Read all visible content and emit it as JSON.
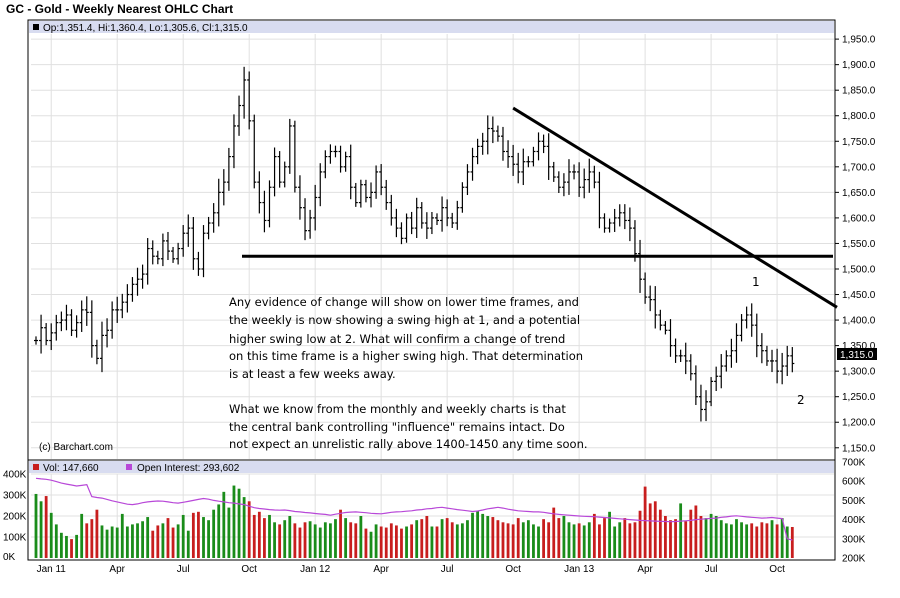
{
  "header": {
    "title": "GC - Gold - Weekly Nearest OHLC Chart",
    "ohlc_readout": "Op:1,351.4, Hi:1,360.4, Lo:1,305.6, Cl:1,315.0",
    "last_price_tag": "1,315.0"
  },
  "volume_legend": {
    "vol_label": "Vol: 147,660",
    "oi_label": "Open Interest: 293,602"
  },
  "copyright": "(c) Barchart.com",
  "annotation": {
    "lines": [
      "Any evidence of change will show on lower time frames, and",
      "the weekly is now showing a swing high at 1, and a potential",
      "higher swing low at 2.  What will confirm a change of trend",
      "on this time frame is a higher swing high.  That determination",
      "is at least a few weeks away.",
      "",
      "What we know from the monthly and weekly charts is that",
      "the central bank controlling \"influence\" remains intact.  Do",
      "not expect an unrelistic rally above 1400-1450 any time soon."
    ],
    "marker_1": "1",
    "marker_2": "2"
  },
  "colors": {
    "ohlc_bar": "#000000",
    "vol_up": "#1a8c1a",
    "vol_down": "#c81e1e",
    "open_interest": "#b848d8",
    "header_band": "#d8dcf0",
    "grid": "#e0e0e0"
  },
  "chart_data": {
    "type": "ohlc",
    "ylim": [
      1130,
      1960
    ],
    "y_ticks": [
      "1,150.0",
      "1,200.0",
      "1,250.0",
      "1,300.0",
      "1,350.0",
      "1,400.0",
      "1,450.0",
      "1,500.0",
      "1,550.0",
      "1,600.0",
      "1,650.0",
      "1,700.0",
      "1,750.0",
      "1,800.0",
      "1,850.0",
      "1,900.0",
      "1,950.0"
    ],
    "y_tick_values": [
      1150,
      1200,
      1250,
      1300,
      1350,
      1400,
      1450,
      1500,
      1550,
      1600,
      1650,
      1700,
      1750,
      1800,
      1850,
      1900,
      1950
    ],
    "x_ticks": [
      "Jan 11",
      "Apr",
      "Jul",
      "Oct",
      "Jan 12",
      "Apr",
      "Jul",
      "Oct",
      "Jan 13",
      "Apr",
      "Jul",
      "Oct"
    ],
    "x_tick_week_index": [
      3,
      16,
      29,
      42,
      55,
      68,
      81,
      94,
      107,
      120,
      133,
      146
    ],
    "closes": [
      1360,
      1385,
      1360,
      1375,
      1395,
      1400,
      1410,
      1380,
      1395,
      1420,
      1415,
      1350,
      1325,
      1370,
      1380,
      1420,
      1420,
      1435,
      1450,
      1470,
      1480,
      1490,
      1540,
      1525,
      1520,
      1555,
      1535,
      1520,
      1540,
      1570,
      1580,
      1520,
      1500,
      1570,
      1590,
      1610,
      1650,
      1670,
      1720,
      1780,
      1820,
      1870,
      1790,
      1670,
      1630,
      1595,
      1660,
      1720,
      1670,
      1700,
      1780,
      1660,
      1620,
      1575,
      1600,
      1640,
      1690,
      1720,
      1730,
      1730,
      1700,
      1720,
      1660,
      1630,
      1665,
      1640,
      1650,
      1690,
      1660,
      1630,
      1600,
      1580,
      1560,
      1600,
      1580,
      1620,
      1590,
      1580,
      1600,
      1595,
      1620,
      1600,
      1590,
      1620,
      1660,
      1690,
      1720,
      1740,
      1750,
      1775,
      1770,
      1760,
      1730,
      1720,
      1705,
      1690,
      1710,
      1710,
      1730,
      1750,
      1740,
      1700,
      1680,
      1660,
      1670,
      1690,
      1690,
      1660,
      1675,
      1690,
      1670,
      1600,
      1580,
      1590,
      1600,
      1610,
      1595,
      1580,
      1530,
      1480,
      1445,
      1440,
      1410,
      1390,
      1380,
      1350,
      1330,
      1330,
      1320,
      1295,
      1250,
      1225,
      1240,
      1280,
      1290,
      1310,
      1330,
      1340,
      1370,
      1400,
      1410,
      1390,
      1350,
      1340,
      1320,
      1320,
      1300,
      1310,
      1330,
      1315
    ],
    "volume_ylim": [
      0,
      400000
    ],
    "volume_y_ticks": [
      "0K",
      "100K",
      "200K",
      "300K",
      "400K"
    ],
    "volume_tick_values": [
      0,
      100000,
      200000,
      300000,
      400000
    ],
    "volume": [
      305000,
      270000,
      295000,
      215000,
      160000,
      120000,
      105000,
      90000,
      110000,
      210000,
      165000,
      185000,
      230000,
      155000,
      135000,
      150000,
      145000,
      210000,
      150000,
      160000,
      165000,
      175000,
      195000,
      130000,
      155000,
      165000,
      190000,
      145000,
      160000,
      205000,
      130000,
      215000,
      220000,
      195000,
      180000,
      230000,
      255000,
      315000,
      240000,
      345000,
      330000,
      290000,
      270000,
      205000,
      220000,
      190000,
      205000,
      170000,
      160000,
      180000,
      200000,
      165000,
      145000,
      170000,
      175000,
      160000,
      145000,
      170000,
      165000,
      185000,
      230000,
      190000,
      170000,
      165000,
      200000,
      140000,
      125000,
      160000,
      150000,
      145000,
      165000,
      155000,
      140000,
      150000,
      160000,
      180000,
      185000,
      200000,
      150000,
      150000,
      185000,
      190000,
      170000,
      160000,
      165000,
      180000,
      215000,
      225000,
      210000,
      200000,
      195000,
      180000,
      170000,
      165000,
      160000,
      190000,
      170000,
      180000,
      160000,
      150000,
      185000,
      170000,
      240000,
      190000,
      200000,
      170000,
      160000,
      165000,
      155000,
      170000,
      210000,
      160000,
      190000,
      220000,
      150000,
      170000,
      190000,
      165000,
      170000,
      225000,
      340000,
      260000,
      270000,
      230000,
      200000,
      180000,
      185000,
      260000,
      175000,
      230000,
      250000,
      200000,
      190000,
      210000,
      200000,
      180000,
      165000,
      160000,
      185000,
      170000,
      160000,
      165000,
      150000,
      170000,
      165000,
      180000,
      160000,
      190000,
      150000,
      147660
    ],
    "oi_ylim": [
      200000,
      700000
    ],
    "oi_y_ticks": [
      "200K",
      "300K",
      "400K",
      "500K",
      "600K",
      "700K"
    ],
    "oi_tick_values": [
      200000,
      300000,
      400000,
      500000,
      600000,
      700000
    ],
    "open_interest": [
      615000,
      612000,
      610000,
      605000,
      598000,
      590000,
      585000,
      580000,
      575000,
      578000,
      582000,
      520000,
      515000,
      512000,
      505000,
      498000,
      492000,
      486000,
      480000,
      478000,
      482000,
      488000,
      492000,
      495000,
      497000,
      496000,
      492000,
      488000,
      486000,
      490000,
      495000,
      500000,
      505000,
      510000,
      506000,
      500000,
      496000,
      492000,
      488000,
      486000,
      482000,
      478000,
      470000,
      462000,
      458000,
      455000,
      452000,
      450000,
      449000,
      450000,
      447000,
      442000,
      440000,
      437000,
      435000,
      432000,
      429000,
      427000,
      423000,
      428000,
      433000,
      437000,
      439000,
      440000,
      438000,
      436000,
      433000,
      431000,
      430000,
      434000,
      438000,
      440000,
      441000,
      444000,
      446000,
      450000,
      452000,
      456000,
      458000,
      462000,
      464000,
      460000,
      456000,
      452000,
      449000,
      446000,
      442000,
      445000,
      450000,
      456000,
      460000,
      464000,
      460000,
      454000,
      450000,
      446000,
      444000,
      442000,
      440000,
      440000,
      438000,
      434000,
      430000,
      427000,
      425000,
      423000,
      421000,
      419000,
      417000,
      416000,
      415000,
      413000,
      411000,
      409000,
      406000,
      404000,
      402000,
      400000,
      398000,
      396000,
      395000,
      393000,
      392000,
      391000,
      390000,
      389000,
      390000,
      392000,
      394000,
      396000,
      400000,
      402000,
      404000,
      406000,
      408000,
      412000,
      414000,
      418000,
      420000,
      417000,
      414000,
      412000,
      410000,
      408000,
      409000,
      411000,
      408000,
      405000,
      300000,
      293602
    ],
    "support_line_level": 1525,
    "trendline": {
      "from_week": 94,
      "from_value": 1815,
      "to_week": 158,
      "to_value": 1425
    }
  }
}
